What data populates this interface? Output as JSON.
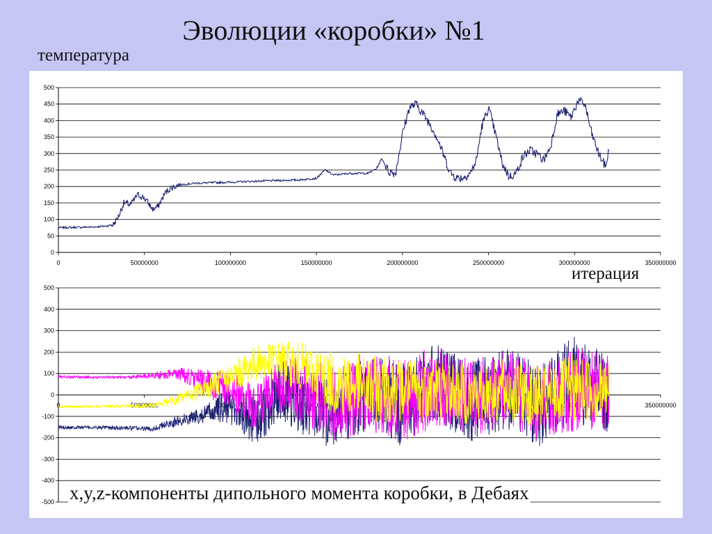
{
  "slide": {
    "title": "Эволюции «коробки» №1",
    "temperature_label": "температура",
    "iteration_label": "итерация",
    "dipole_label": "x,y,z-компоненты дипольного момента коробки, в Дебаях"
  },
  "colors": {
    "background": "#c6c6f4",
    "panel": "#ffffff",
    "temperature_line": "#1a1f6e",
    "dipole_x": "#1a1f6e",
    "dipole_y": "#ff00ff",
    "dipole_z": "#ffff00"
  },
  "chart_data": [
    {
      "type": "line",
      "xlim": [
        0,
        350000000
      ],
      "ylim": [
        0,
        500
      ],
      "x_ticks": [
        "0",
        "50000000",
        "100000000",
        "150000000",
        "200000000",
        "250000000",
        "300000000",
        "350000000"
      ],
      "y_ticks": [
        "0",
        "50",
        "100",
        "150",
        "200",
        "250",
        "300",
        "350",
        "400",
        "450",
        "500"
      ],
      "grid": true,
      "series": [
        {
          "x": [
            0,
            10000000,
            20000000,
            28000000,
            32000000,
            35000000,
            38000000,
            42000000,
            46000000,
            50000000,
            55000000,
            58000000,
            62000000,
            65000000,
            70000000,
            80000000,
            100000000,
            120000000,
            140000000,
            150000000,
            155000000,
            160000000,
            170000000,
            180000000,
            185000000,
            188000000,
            192000000,
            196000000,
            200000000,
            204000000,
            208000000,
            212000000,
            216000000,
            220000000,
            225000000,
            228000000,
            232000000,
            236000000,
            240000000,
            243000000,
            246000000,
            250000000,
            254000000,
            258000000,
            262000000,
            266000000,
            270000000,
            274000000,
            278000000,
            282000000,
            286000000,
            290000000,
            294000000,
            298000000,
            302000000,
            306000000,
            310000000,
            314000000,
            318000000,
            320000000
          ],
          "values": [
            75,
            76,
            77,
            80,
            85,
            110,
            150,
            145,
            175,
            165,
            130,
            140,
            180,
            195,
            205,
            210,
            213,
            217,
            220,
            225,
            250,
            235,
            240,
            240,
            255,
            285,
            245,
            240,
            360,
            440,
            450,
            420,
            390,
            350,
            280,
            240,
            225,
            228,
            245,
            280,
            380,
            440,
            360,
            270,
            230,
            240,
            290,
            310,
            300,
            280,
            320,
            420,
            430,
            410,
            460,
            450,
            360,
            300,
            260,
            310
          ]
        }
      ]
    },
    {
      "type": "line",
      "xlim": [
        0,
        350000000
      ],
      "ylim": [
        -500,
        500
      ],
      "x_ticks": [
        "0",
        "50000000",
        "100000000",
        "150000000",
        "200000000",
        "250000000",
        "300000000",
        "350000000"
      ],
      "y_ticks": [
        "-500",
        "-400",
        "-300",
        "-200",
        "-100",
        "0",
        "100",
        "200",
        "300",
        "400",
        "500"
      ],
      "grid": true,
      "series": [
        {
          "x": [
            0,
            20000000,
            40000000,
            55000000,
            70000000,
            85000000,
            100000000,
            115000000,
            130000000,
            145000000,
            160000000,
            180000000,
            200000000,
            220000000,
            240000000,
            260000000,
            280000000,
            300000000,
            320000000
          ],
          "values": [
            -150,
            -152,
            -155,
            -158,
            -120,
            -90,
            -50,
            -120,
            20,
            -60,
            -90,
            10,
            -40,
            60,
            -30,
            40,
            -60,
            80,
            0
          ],
          "spread": [
            8,
            8,
            10,
            12,
            25,
            40,
            90,
            120,
            140,
            150,
            160,
            180,
            200,
            190,
            190,
            200,
            190,
            210,
            180
          ]
        },
        {
          "x": [
            0,
            20000000,
            40000000,
            55000000,
            70000000,
            85000000,
            100000000,
            115000000,
            130000000,
            145000000,
            160000000,
            180000000,
            200000000,
            220000000,
            240000000,
            260000000,
            280000000,
            300000000,
            320000000
          ],
          "values": [
            85,
            83,
            82,
            90,
            100,
            60,
            20,
            -60,
            40,
            10,
            -40,
            20,
            -20,
            40,
            -10,
            20,
            -30,
            30,
            10
          ],
          "spread": [
            6,
            6,
            6,
            15,
            30,
            60,
            90,
            110,
            140,
            160,
            180,
            190,
            200,
            190,
            180,
            190,
            180,
            200,
            180
          ]
        },
        {
          "x": [
            0,
            20000000,
            40000000,
            55000000,
            70000000,
            85000000,
            100000000,
            115000000,
            130000000,
            145000000,
            160000000,
            180000000,
            200000000,
            220000000,
            240000000,
            260000000,
            280000000,
            300000000,
            320000000
          ],
          "values": [
            -55,
            -54,
            -52,
            -50,
            -20,
            30,
            80,
            150,
            160,
            120,
            60,
            30,
            20,
            30,
            0,
            20,
            -10,
            30,
            20
          ],
          "spread": [
            6,
            6,
            8,
            12,
            25,
            50,
            70,
            80,
            100,
            120,
            150,
            160,
            150,
            150,
            140,
            150,
            140,
            160,
            140
          ]
        }
      ]
    }
  ]
}
